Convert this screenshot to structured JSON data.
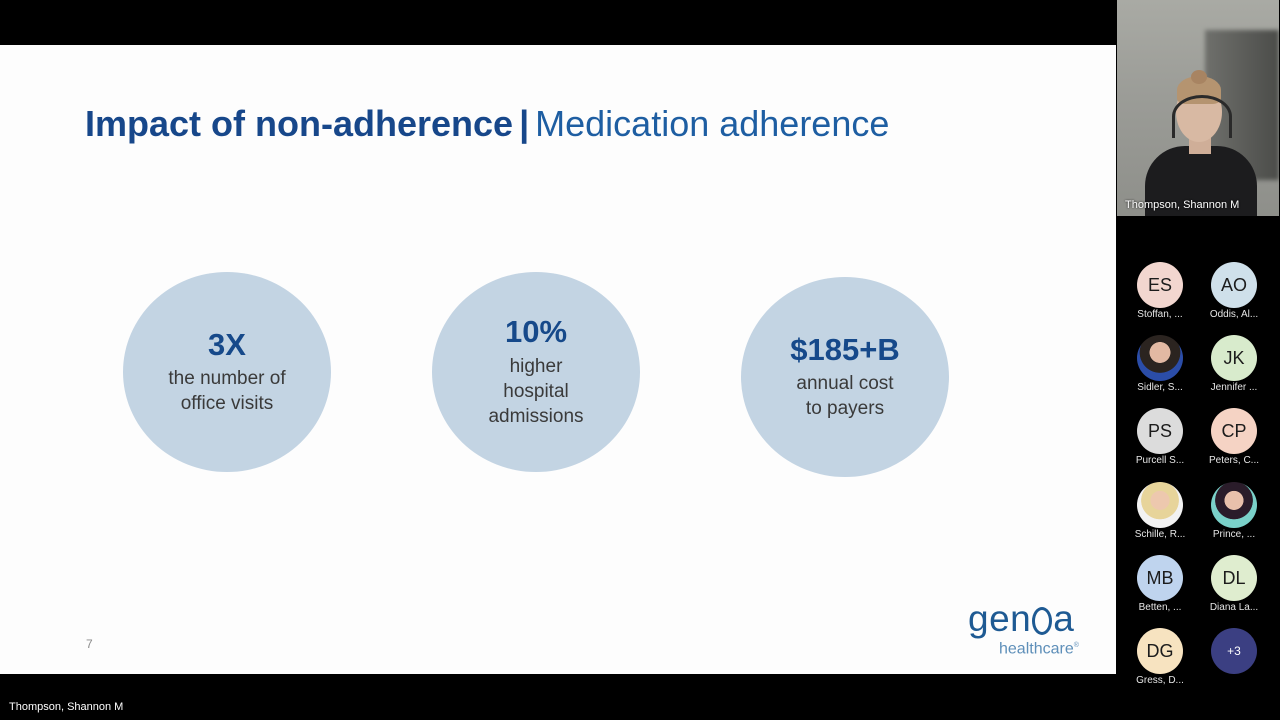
{
  "slide": {
    "title_bold": "Impact of non-adherence",
    "title_separator": "|",
    "title_rest": "Medication adherence",
    "stats": [
      {
        "value": "3X",
        "lines": [
          "the number of",
          "office visits"
        ]
      },
      {
        "value": "10%",
        "lines": [
          "higher",
          "hospital",
          "admissions"
        ]
      },
      {
        "value": "$185+B",
        "lines": [
          "annual cost",
          "to payers"
        ]
      }
    ],
    "page_number": "7",
    "logo": {
      "word_before": "gen",
      "word_after": "a",
      "tagline": "healthcare",
      "mark": "®"
    }
  },
  "active_speaker": {
    "name": "Thompson, Shannon M"
  },
  "presenter_bottom_label": "Thompson, Shannon M",
  "participants": [
    {
      "initials": "ES",
      "name": "Stoffan, ..."
    },
    {
      "initials": "AO",
      "name": "Oddis, Al..."
    },
    {
      "initials": "",
      "name": "Sidler, S...",
      "photo": true
    },
    {
      "initials": "JK",
      "name": "Jennifer ..."
    },
    {
      "initials": "PS",
      "name": "Purcell S..."
    },
    {
      "initials": "CP",
      "name": "Peters, C..."
    },
    {
      "initials": "",
      "name": "Schille, R...",
      "photo": true
    },
    {
      "initials": "",
      "name": "Prince, ...",
      "photo": true
    },
    {
      "initials": "MB",
      "name": "Betten, ..."
    },
    {
      "initials": "DL",
      "name": "Diana La..."
    },
    {
      "initials": "DG",
      "name": "Gress, D..."
    }
  ],
  "more_participants": "+3",
  "colors": {
    "title": "#17478a",
    "circle": "#c3d4e3",
    "more_badge": "#3b3f82"
  }
}
